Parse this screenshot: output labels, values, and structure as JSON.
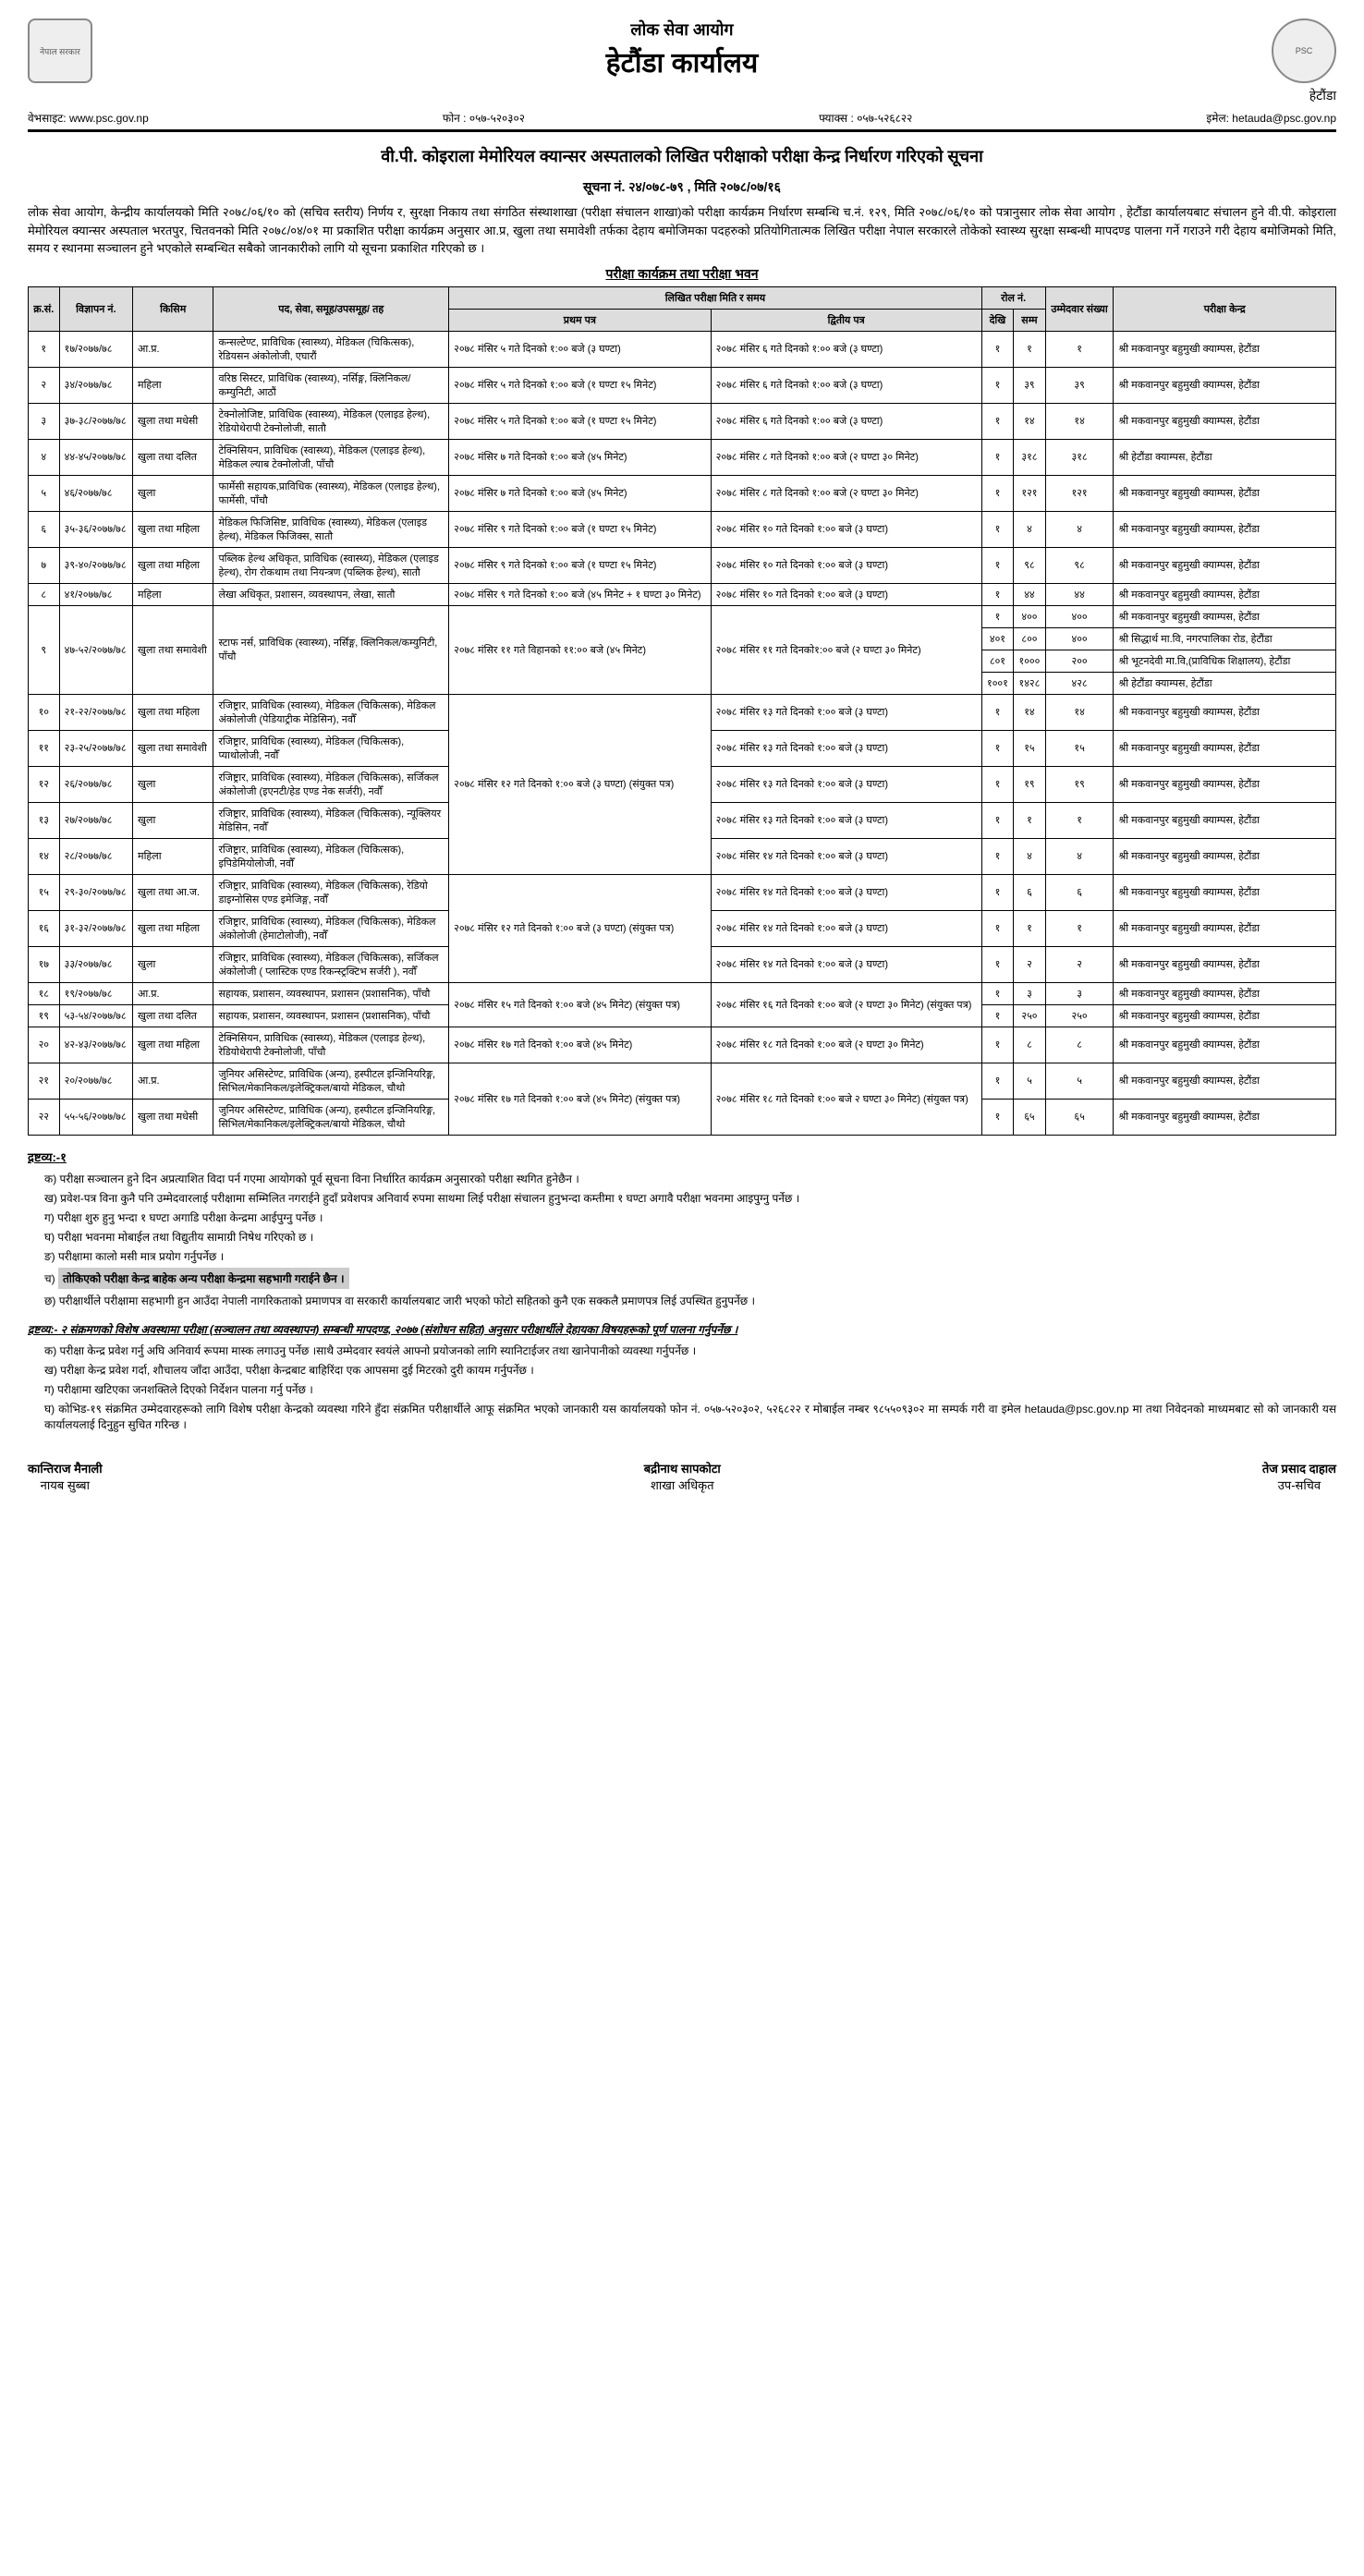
{
  "header": {
    "org": "लोक सेवा आयोग",
    "office": "हेटौंडा कार्यालय",
    "location": "हेटौंडा",
    "website_label": "वेभसाइट:",
    "website": "www.psc.gov.np",
    "phone_label": "फोन :",
    "phone": "०५७-५२०३०२",
    "fax_label": "फ्याक्स :",
    "fax": "०५७-५२६८२२",
    "email_label": "इमेल:",
    "email": "hetauda@psc.gov.np"
  },
  "notice": {
    "title": "वी.पी. कोइराला मेमोरियल क्यान्सर अस्पतालको लिखित परीक्षाको परीक्षा केन्द्र निर्धारण गरिएको सूचना",
    "number": "सूचना नं.  २४/०७८-७९ ,  मिति २०७८/०७/१६",
    "intro": "लोक सेवा आयोग, केन्द्रीय कार्यालयको मिति २०७८/०६/१० को  (सचिव स्तरीय) निर्णय र, सुरक्षा निकाय तथा संगठित संस्थाशाखा (परीक्षा संचालन शाखा)को परीक्षा कार्यक्रम निर्धारण सम्बन्धि च.नं. १२९, मिति २०७८/०६/१० को पत्रानुसार लोक सेवा आयोग , हेटौंडा कार्यालयबाट संचालन हुने वी.पी. कोइराला मेमोरियल क्यान्सर अस्पताल भरतपुर, चितवनको मिति २०७८/०४/०१ मा प्रकाशित परीक्षा कार्यक्रम अनुसार आ.प्र, खुला तथा समावेशी तर्फका देहाय बमोजिमका पदहरुको प्रतियोगितात्मक लिखित परीक्षा नेपाल सरकारले तोकेको स्वास्थ्य सुरक्षा सम्बन्धी मापदण्ड पालना गर्ने गराउने गरी देहाय बमोजिमको मिति, समय र स्थानमा सञ्चालन हुने भएकोले सम्बन्धित सबैको जानकारीको लागि यो सूचना प्रकाशित गरिएको छ ।",
    "table_title": "परीक्षा कार्यक्रम तथा परीक्षा भवन"
  },
  "table": {
    "headers": {
      "sn": "क्र.सं.",
      "adv": "विज्ञापन नं.",
      "kind": "किसिम",
      "post": "पद, सेवा, समूह/उपसमूह/ तह",
      "exam_group": "लिखित परीक्षा मिति र समय",
      "paper1": "प्रथम पत्र",
      "paper2": "द्वितीय पत्र",
      "roll_group": "रोल नं.",
      "roll_from": "देखि",
      "roll_to": "सम्म",
      "cand": "उम्मेदवार संख्या",
      "center": "परीक्षा केन्द्र"
    },
    "rows": [
      {
        "sn": "१",
        "adv": "१७/२०७७/७८",
        "kind": "आ.प्र.",
        "post": "कन्सल्टेण्ट, प्राविधिक (स्वास्थ्य), मेडिकल (चिकित्सक), रेडियसन अंकोलोजी, एघारौं",
        "p1": "२०७८ मंसिर ५ गते दिनको १:०० बजे (३ घण्टा)",
        "p2": "२०७८ मंसिर ६ गते दिनको १:०० बजे (३ घण्टा)",
        "rf": "१",
        "rt": "१",
        "c": "१",
        "ctr": "श्री मकवानपुर बहुमुखी क्याम्पस, हेटौंडा"
      },
      {
        "sn": "२",
        "adv": "३४/२०७७/७८",
        "kind": "महिला",
        "post": "वरिष्ठ सिस्टर, प्राविधिक (स्वास्थ्य), नर्सिङ्ग, क्लिनिकल/कम्युनिटी, आठौं",
        "p1": "२०७८ मंसिर ५ गते दिनको १:०० बजे (१ घण्टा १५ मिनेट)",
        "p2": "२०७८ मंसिर ६ गते दिनको १:०० बजे (३ घण्टा)",
        "rf": "१",
        "rt": "३९",
        "c": "३९",
        "ctr": "श्री मकवानपुर बहुमुखी क्याम्पस, हेटौंडा"
      },
      {
        "sn": "३",
        "adv": "३७-३८/२०७७/७८",
        "kind": "खुला तथा मधेसी",
        "post": "टेक्नोलोजिष्ट, प्राविधिक (स्वास्थ्य), मेडिकल (एलाइड हेल्थ), रेडियोथेरापी  टेक्नोलोजी, सातौ",
        "p1": "२०७८ मंसिर ५ गते दिनको १:०० बजे (१ घण्टा १५ मिनेट)",
        "p2": "२०७८ मंसिर ६ गते दिनको १:०० बजे (३ घण्टा)",
        "rf": "१",
        "rt": "१४",
        "c": "१४",
        "ctr": "श्री मकवानपुर बहुमुखी क्याम्पस, हेटौंडा"
      },
      {
        "sn": "४",
        "adv": "४४-४५/२०७७/७८",
        "kind": "खुला तथा दलित",
        "post": "टेक्निसियन, प्राविधिक (स्वास्थ्य), मेडिकल (एलाइड हेल्थ), मेडिकल ल्याब टेक्नोलोजी, पाँचौ",
        "p1": "२०७८ मंसिर ७ गते दिनको १:०० बजे (४५ मिनेट)",
        "p2": "२०७८ मंसिर ८ गते दिनको १:०० बजे (२ घण्टा ३० मिनेट)",
        "rf": "१",
        "rt": "३१८",
        "c": "३१८",
        "ctr": "श्री हेटौंडा क्याम्पस, हेटौंडा"
      },
      {
        "sn": "५",
        "adv": "४६/२०७७/७८",
        "kind": "खुला",
        "post": "फार्मेसी सहायक,प्राविधिक (स्वास्थ्य), मेडिकल (एलाइड हेल्थ), फार्मेसी, पाँचौ",
        "p1": "२०७८ मंसिर ७ गते दिनको १:०० बजे (४५ मिनेट)",
        "p2": "२०७८ मंसिर ८ गते दिनको १:०० बजे (२ घण्टा ३० मिनेट)",
        "rf": "१",
        "rt": "१२१",
        "c": "१२१",
        "ctr": "श्री मकवानपुर बहुमुखी क्याम्पस, हेटौंडा"
      },
      {
        "sn": "६",
        "adv": "३५-३६/२०७७/७८",
        "kind": "खुला तथा महिला",
        "post": "मेडिकल फिजिसिष्ट, प्राविधिक (स्वास्थ्य), मेडिकल (एलाइड हेल्थ), मेडिकल फिजिक्स, सातौ",
        "p1": "२०७८ मंसिर ९ गते दिनको १:०० बजे (१ घण्टा १५ मिनेट)",
        "p2": "२०७८ मंसिर १० गते दिनको १:०० बजे (३ घण्टा)",
        "rf": "१",
        "rt": "४",
        "c": "४",
        "ctr": "श्री मकवानपुर बहुमुखी क्याम्पस, हेटौंडा"
      },
      {
        "sn": "७",
        "adv": "३९-४०/२०७७/७८",
        "kind": "खुला तथा महिला",
        "post": "पब्लिक हेल्थ अधिकृत, प्राविधिक (स्वास्थ्य), मेडिकल (एलाइड हेल्थ), रोग रोकथाम तथा नियन्त्रण (पब्लिक हेल्थ), सातौ",
        "p1": "२०७८ मंसिर ९ गते दिनको १:०० बजे (१ घण्टा १५ मिनेट)",
        "p2": "२०७८ मंसिर १० गते दिनको १:०० बजे (३ घण्टा)",
        "rf": "१",
        "rt": "९८",
        "c": "९८",
        "ctr": "श्री मकवानपुर बहुमुखी क्याम्पस, हेटौंडा"
      },
      {
        "sn": "८",
        "adv": "४१/२०७७/७८",
        "kind": "महिला",
        "post": "लेखा अधिकृत, प्रशासन, व्यवस्थापन, लेखा, सातौ",
        "p1": "२०७८ मंसिर ९ गते दिनको १:०० बजे (४५ मिनेट + १ घण्टा ३० मिनेट)",
        "p2": "२०७८ मंसिर १० गते दिनको १:०० बजे (३ घण्टा)",
        "rf": "१",
        "rt": "४४",
        "c": "४४",
        "ctr": "श्री मकवानपुर बहुमुखी क्याम्पस, हेटौंडा"
      },
      {
        "sn": "९",
        "adv": "४७-५२/२०७७/७८",
        "kind": "खुला तथा समावेशी",
        "post": "स्टाफ नर्स, प्राविधिक (स्वास्थ्य), नर्सिङ्ग, क्लिनिकल/कम्युनिटी, पाँचौ",
        "p1": "२०७८ मंसिर ११ गते विहानको ११:०० बजे (४५ मिनेट)",
        "p2": "२०७८ मंसिर ११ गते दिनको१:०० बजे (२ घण्टा ३०  मिनेट)",
        "splits": [
          {
            "rf": "१",
            "rt": "४००",
            "c": "४००",
            "ctr": "श्री मकवानपुर बहुमुखी क्याम्पस, हेटौंडा"
          },
          {
            "rf": "४०१",
            "rt": "८००",
            "c": "४००",
            "ctr": "श्री सिद्धार्थ मा.वि, नगरपालिका रोड, हेटौंडा"
          },
          {
            "rf": "८०१",
            "rt": "१०००",
            "c": "२००",
            "ctr": "श्री भूटनदेवी मा.वि,(प्राविधिक शिक्षालय), हेटौंडा"
          },
          {
            "rf": "१००१",
            "rt": "१४२८",
            "c": "४२८",
            "ctr": "श्री हेटौंडा क्याम्पस, हेटौंडा"
          }
        ]
      },
      {
        "sn": "१०",
        "adv": "२१-२२/२०७७/७८",
        "kind": "खुला तथा महिला",
        "post": "रजिष्ट्रार, प्राविधिक (स्वास्थ्य), मेडिकल (चिकित्सक), मेडिकल अंकोलोजी (पेडियाट्रीक मेडिसिन), नवौँ",
        "p2": "२०७८ मंसिर १३ गते दिनको १:०० बजे (३ घण्टा)",
        "rf": "१",
        "rt": "१४",
        "c": "१४",
        "ctr": "श्री मकवानपुर बहुमुखी क्याम्पस, हेटौंडा"
      },
      {
        "sn": "११",
        "adv": "२३-२५/२०७७/७८",
        "kind": "खुला तथा समावेशी",
        "post": "रजिष्ट्रार, प्राविधिक (स्वास्थ्य), मेडिकल (चिकित्सक), प्याथोलोजी, नवौँ",
        "p2": "२०७८ मंसिर १३ गते दिनको १:०० बजे (३ घण्टा)",
        "rf": "१",
        "rt": "१५",
        "c": "१५",
        "ctr": "श्री मकवानपुर बहुमुखी क्याम्पस, हेटौंडा"
      },
      {
        "sn": "१२",
        "adv": "२६/२०७७/७८",
        "kind": "खुला",
        "post": "रजिष्ट्रार, प्राविधिक (स्वास्थ्य), मेडिकल (चिकित्सक), सर्जिकल अंकोलोजी (इएनटी/हेड एण्ड नेक सर्जरी), नवौँ",
        "p2": "२०७८ मंसिर १३ गते दिनको १:०० बजे (३ घण्टा)",
        "rf": "१",
        "rt": "१९",
        "c": "१९",
        "ctr": "श्री मकवानपुर बहुमुखी क्याम्पस, हेटौंडा"
      },
      {
        "sn": "१३",
        "adv": "२७/२०७७/७८",
        "kind": "खुला",
        "post": "रजिष्ट्रार, प्राविधिक (स्वास्थ्य), मेडिकल (चिकित्सक), न्यूक्लियर मेडिसिन, नवौँ",
        "p2": "२०७८ मंसिर १३ गते दिनको १:०० बजे (३ घण्टा)",
        "rf": "१",
        "rt": "१",
        "c": "१",
        "ctr": "श्री मकवानपुर बहुमुखी क्याम्पस, हेटौंडा"
      },
      {
        "sn": "१४",
        "adv": "२८/२०७७/७८",
        "kind": "महिला",
        "post": "रजिष्ट्रार, प्राविधिक (स्वास्थ्य), मेडिकल (चिकित्सक), इपिडेमियोलोजी, नवौँ",
        "p2": "२०७८ मंसिर १४ गते दिनको १:०० बजे (३ घण्टा)",
        "rf": "१",
        "rt": "४",
        "c": "४",
        "ctr": "श्री मकवानपुर बहुमुखी क्याम्पस, हेटौंडा"
      },
      {
        "sn": "१५",
        "adv": "२९-३०/२०७७/७८",
        "kind": "खुला तथा आ.ज.",
        "post": "रजिष्ट्रार, प्राविधिक (स्वास्थ्य), मेडिकल (चिकित्सक), रेडियो डाइग्नोसिस एण्ड इमेजिङ्ग, नवौँ",
        "p2": "२०७८ मंसिर १४ गते दिनको १:०० बजे (३ घण्टा)",
        "rf": "१",
        "rt": "६",
        "c": "६",
        "ctr": "श्री मकवानपुर बहुमुखी क्याम्पस, हेटौंडा"
      },
      {
        "sn": "१६",
        "adv": "३१-३२/२०७७/७८",
        "kind": "खुला तथा महिला",
        "post": "रजिष्ट्रार, प्राविधिक (स्वास्थ्य), मेडिकल (चिकित्सक), मेडिकल अंकोलोजी (हेमाटोलोजी), नवौँ",
        "p2": "२०७८ मंसिर १४ गते दिनको १:०० बजे (३ घण्टा)",
        "rf": "१",
        "rt": "१",
        "c": "१",
        "ctr": "श्री मकवानपुर बहुमुखी क्याम्पस, हेटौंडा"
      },
      {
        "sn": "१७",
        "adv": "३३/२०७७/७८",
        "kind": "खुला",
        "post": "रजिष्ट्रार, प्राविधिक (स्वास्थ्य), मेडिकल (चिकित्सक), सर्जिकल अंकोलोजी ( प्लास्टिक एण्ड रिकन्स्ट्रक्टिभ सर्जरी ), नवौँ",
        "p2": "२०७८ मंसिर १४ गते दिनको १:०० बजे (३ घण्टा)",
        "rf": "१",
        "rt": "२",
        "c": "२",
        "ctr": "श्री मकवानपुर बहुमुखी क्याम्पस, हेटौंडा"
      },
      {
        "sn": "१८",
        "adv": "१९/२०७७/७८",
        "kind": "आ.प्र.",
        "post": "सहायक, प्रशासन, व्यवस्थापन, प्रशासन (प्रशासनिक), पाँचौ",
        "p1": "२०७८ मंसिर १५ गते दिनको १:०० बजे (४५ मिनेट) (संयुक्त पत्र)",
        "p2": "२०७८ मंसिर १६ गते दिनको १:०० बजे (२ घण्टा ३०  मिनेट) (संयुक्त पत्र)",
        "rf": "१",
        "rt": "३",
        "c": "३",
        "ctr": "श्री मकवानपुर बहुमुखी क्याम्पस, हेटौंडा"
      },
      {
        "sn": "१९",
        "adv": "५३-५४/२०७७/७८",
        "kind": "खुला तथा दलित",
        "post": "सहायक, प्रशासन, व्यवस्थापन, प्रशासन (प्रशासनिक), पाँचौ",
        "rf": "१",
        "rt": "२५०",
        "c": "२५०",
        "ctr": "श्री मकवानपुर बहुमुखी क्याम्पस, हेटौंडा"
      },
      {
        "sn": "२०",
        "adv": "४२-४३/२०७७/७८",
        "kind": "खुला तथा महिला",
        "post": "टेक्निसियन, प्राविधिक (स्वास्थ्य), मेडिकल (एलाइड हेल्थ), रेडियोथेरापी  टेक्नोलोजी, पाँचौ",
        "p1": "२०७८ मंसिर १७ गते दिनको १:०० बजे (४५ मिनेट)",
        "p2": "२०७८ मंसिर १८ गते दिनको १:०० बजे (२ घण्टा ३०  मिनेट)",
        "rf": "१",
        "rt": "८",
        "c": "८",
        "ctr": "श्री मकवानपुर बहुमुखी क्याम्पस, हेटौंडा"
      },
      {
        "sn": "२१",
        "adv": "२०/२०७७/७८",
        "kind": "आ.प्र.",
        "post": "जुनियर असिस्टेण्ट, प्राविधिक (अन्य), हस्पीटल इन्जिनियरिङ्ग, सिभिल/मेकानिकल/इलेक्ट्रिकल/बायो मेडिकल, चौथो",
        "p1": "२०७८ मंसिर १७ गते दिनको १:०० बजे (४५ मिनेट) (संयुक्त पत्र)",
        "p2": "२०७८ मंसिर १८ गते दिनको १:०० बजे २ घण्टा ३०  मिनेट) (संयुक्त पत्र)",
        "rf": "१",
        "rt": "५",
        "c": "५",
        "ctr": "श्री मकवानपुर बहुमुखी क्याम्पस, हेटौंडा"
      },
      {
        "sn": "२२",
        "adv": "५५-५६/२०७७/७८",
        "kind": "खुला तथा मधेसी",
        "post": "जुनियर असिस्टेण्ट, प्राविधिक (अन्य), हस्पीटल इन्जिनियरिङ्ग, सिभिल/मेकानिकल/इलेक्ट्रिकल/बायो मेडिकल, चौथो",
        "rf": "१",
        "rt": "६५",
        "c": "६५",
        "ctr": "श्री मकवानपुर बहुमुखी क्याम्पस, हेटौंडा"
      }
    ],
    "merged_p1_10_14": "२०७८ मंसिर १२ गते दिनको १:०० बजे (३ घण्टा) (संयुक्त पत्र)",
    "merged_p1_15_17": "२०७८ मंसिर १२ गते दिनको १:०० बजे (३ घण्टा) (संयुक्त पत्र)"
  },
  "notes1": {
    "title": "द्रष्टव्य:-१",
    "items": [
      "परीक्षा सञ्चालन हुने दिन अप्रत्याशित विदा पर्न गएमा आयोगको पूर्व सूचना विना निर्धारित कार्यक्रम अनुसारको परीक्षा स्थगित हुनेछैन ।",
      "प्रवेश-पत्र विना कुनै पनि उम्मेदवारलाई परीक्षामा सम्मिलित नगराईने हुदाँ प्रवेशपत्र अनिवार्य रुपमा साथमा लिई परीक्षा संचालन हुनुभन्दा कम्तीमा १ घण्टा अगावै परीक्षा भवनमा आइपुग्नु पर्नेछ ।",
      "परीक्षा शुरु हुनु भन्दा १ घण्टा अगाडि परीक्षा केन्द्रमा आईपुग्नु पर्नेछ ।",
      "परीक्षा भवनमा मोबाईल तथा विद्युतीय सामाग्री निषेध गरिएको छ ।",
      "परीक्षामा कालो मसी मात्र प्रयोग गर्नुपर्नेछ ।"
    ],
    "highlight": "तोकिएको परीक्षा केन्द्र बाहेक अन्य परीक्षा केन्द्रमा सहभागी गराईने छैन ।",
    "after_highlight": "परीक्षार्थीले परीक्षामा सहभागी हुन आउँदा नेपाली नागरिकताको प्रमाणपत्र वा सरकारी कार्यालयबाट जारी भएको फोटो सहितको कुनै एक सक्कलै प्रमाणपत्र लिई उपस्थित हुनुपर्नेछ ।"
  },
  "notes2": {
    "title": "द्रष्टव्य:- २ संक्रमणको विशेष अवस्थामा परीक्षा (सञ्चालन तथा व्यवस्थापन) सम्बन्धी मापदण्ड, २०७७ (संशोधन सहित) अनुसार परीक्षार्थीले देहायका विषयहरूको पूर्ण पालना गर्नुपर्नेछ ।",
    "items": [
      "परीक्षा केन्द्र प्रवेश गर्नु अघि अनिवार्य रूपमा मास्क लगाउनु पर्नेछ ।साथै उम्मेदवार स्वयंले आफ्नो प्रयोजनको लागि स्यानिटाईजर तथा खानेपानीको व्यवस्था गर्नुपर्नेछ ।",
      "परीक्षा केन्द्र प्रवेश गर्दा, शौचालय जाँदा आउँदा, परीक्षा केन्द्रबाट बाहिरिंदा एक आपसमा दुई मिटरको दुरी कायम गर्नुपर्नेछ ।",
      "परीक्षामा खटिएका जनशक्तिले दिएको निर्देशन पालना गर्नु पर्नेछ ।",
      "कोभिड-१९ संक्रमित उम्मेदवारहरूको लागि विशेष परीक्षा केन्द्रको व्यवस्था गरिने हुँदा संक्रमित परीक्षार्थीले आफू संक्रमित भएको जानकारी यस कार्यालयको फोन नं. ०५७-५२०३०२, ५२६८२२ र मोबाईल नम्बर ९८५५०९३०२ मा सम्पर्क गरी वा इमेल hetauda@psc.gov.np मा तथा निवेदनको माध्यमबाट सो को  जानकारी यस कार्यालयलाई दिनुहुन सुचित गरिन्छ ।"
    ]
  },
  "signatures": [
    {
      "name": "कान्तिराज मैनाली",
      "post": "नायब सुब्बा"
    },
    {
      "name": "बद्रीनाथ सापकोटा",
      "post": "शाखा अधिकृत"
    },
    {
      "name": "तेज प्रसाद दाहाल",
      "post": "उप-सचिव"
    }
  ],
  "markers": [
    "क)",
    "ख)",
    "ग)",
    "घ)",
    "ङ)",
    "च)",
    "छ)"
  ]
}
